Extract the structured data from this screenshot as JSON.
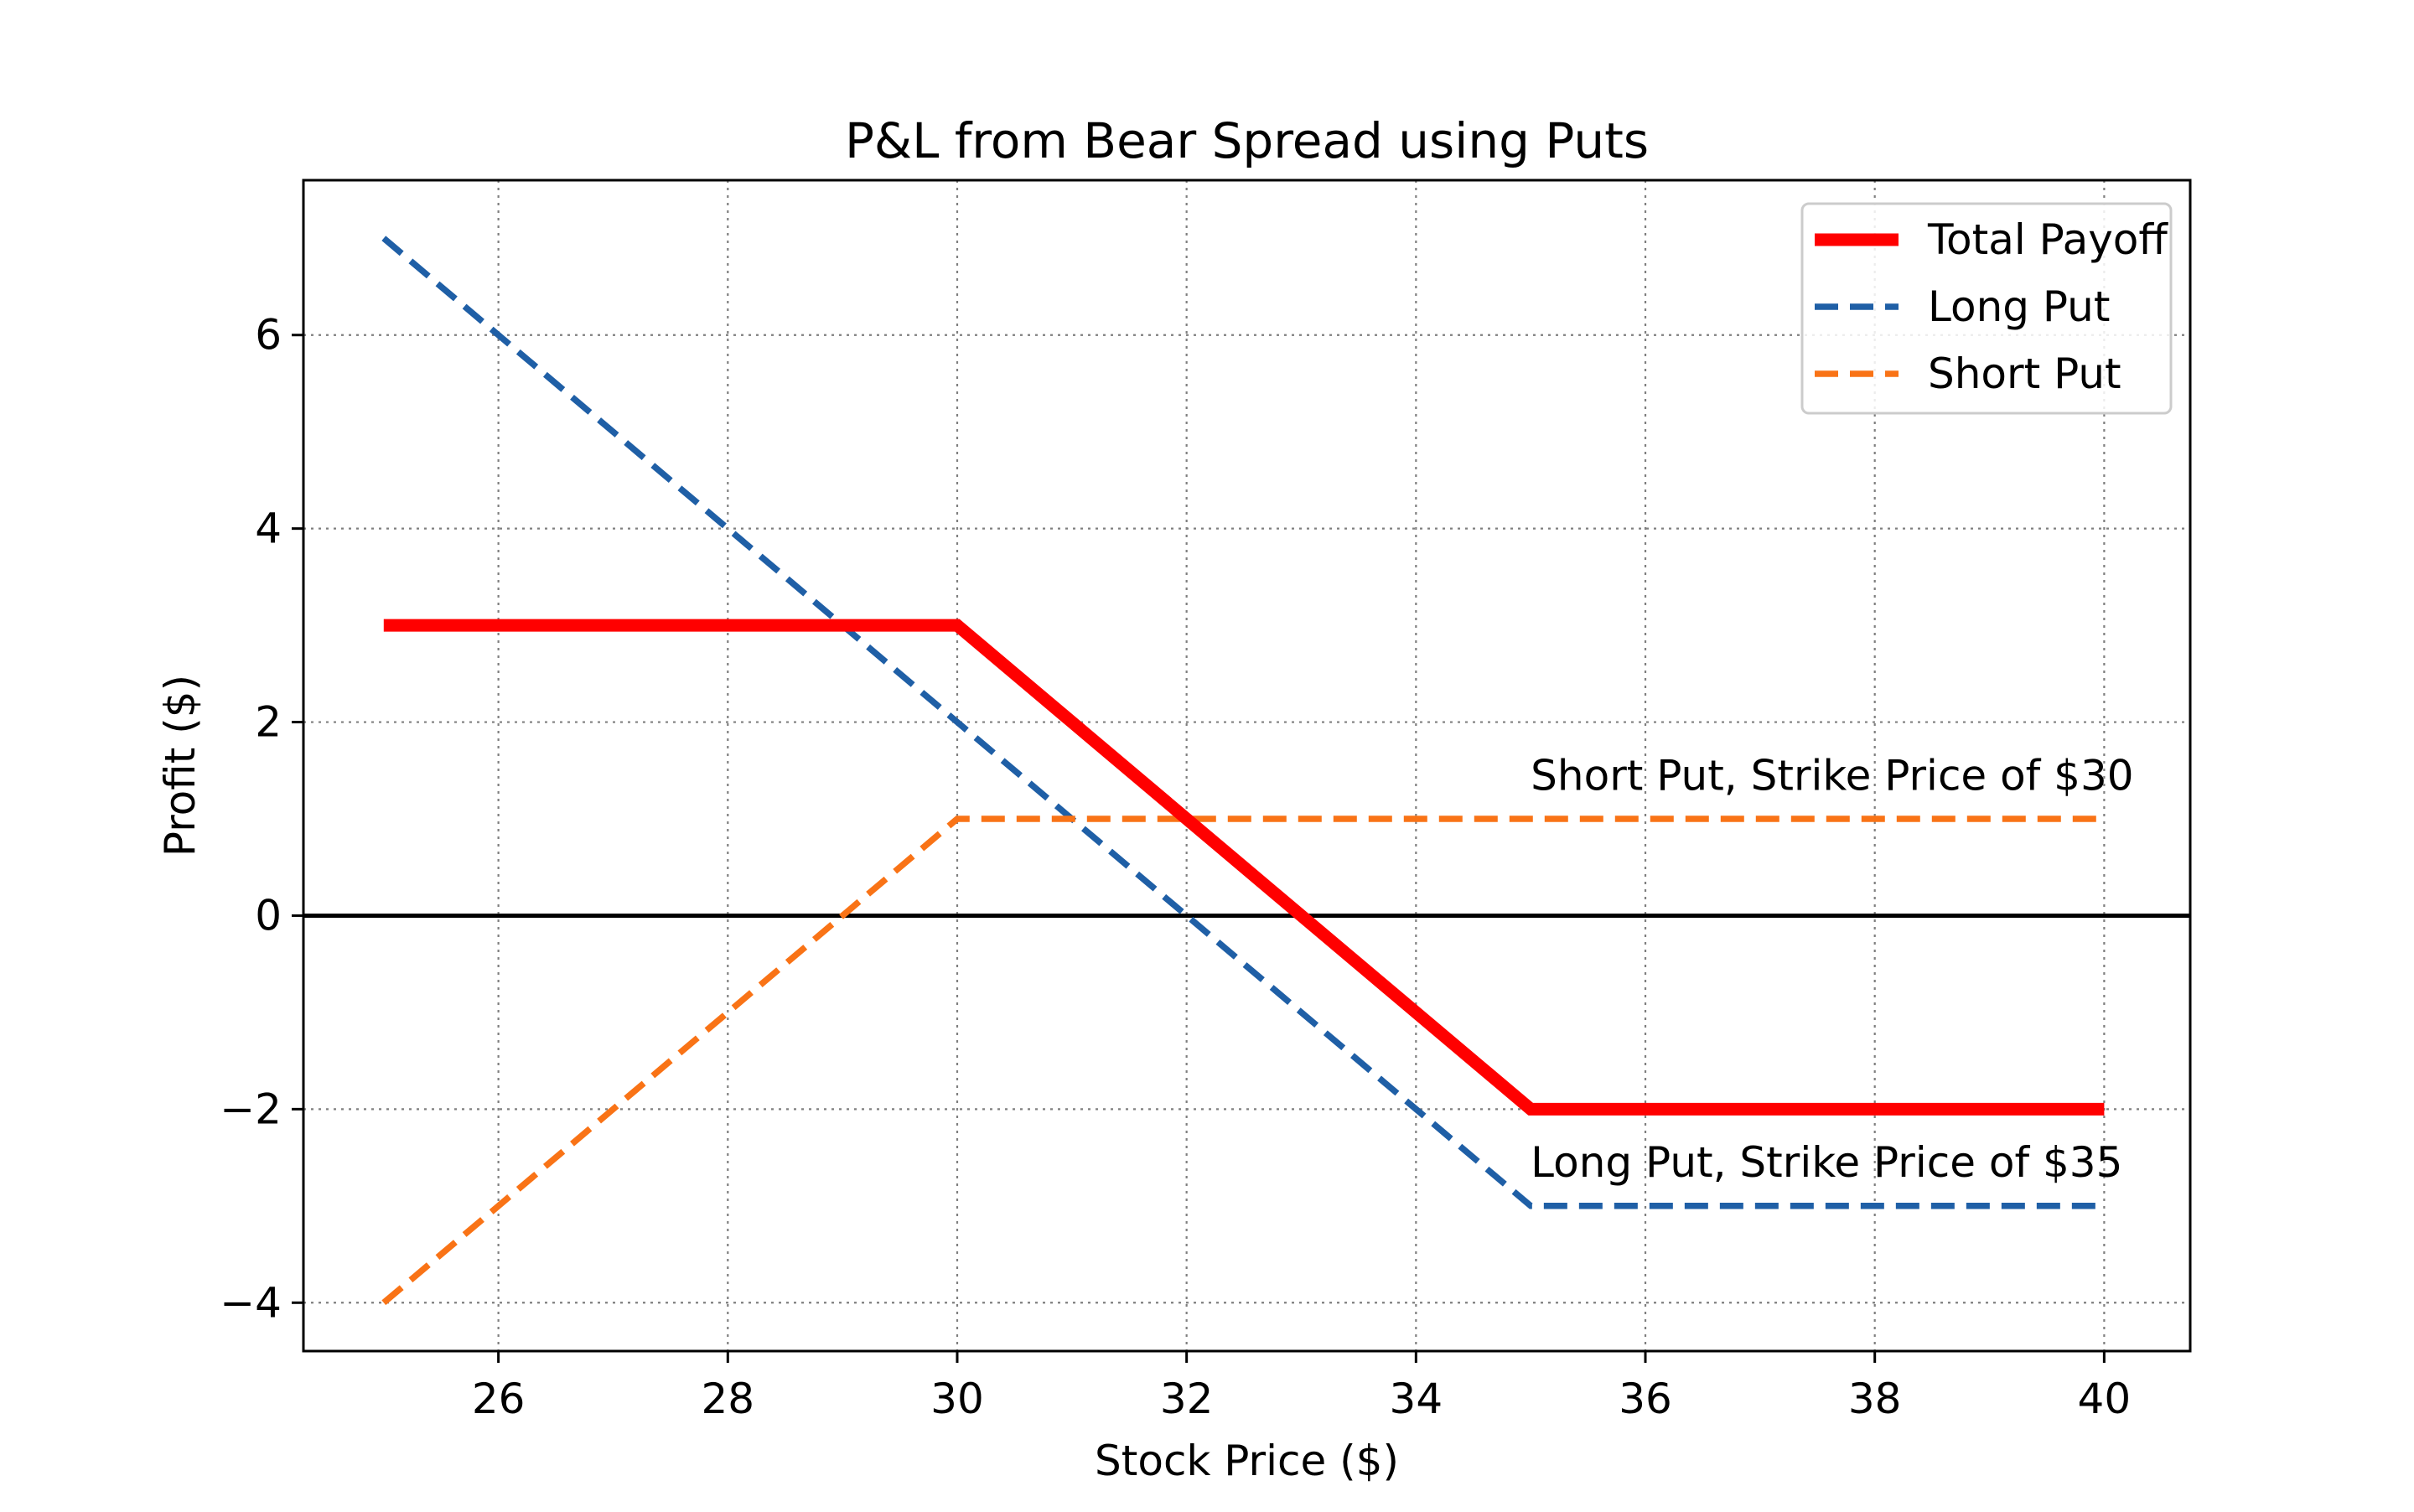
{
  "chart_data": {
    "type": "line",
    "title": "P&L from Bear Spread using Puts",
    "xlabel": "Stock Price ($)",
    "ylabel": "Profit ($)",
    "xlim": [
      24.3,
      40.75
    ],
    "ylim": [
      -4.5,
      7.6
    ],
    "xticks": [
      26,
      28,
      30,
      32,
      34,
      36,
      38,
      40
    ],
    "xtick_labels": [
      "26",
      "28",
      "30",
      "32",
      "34",
      "36",
      "38",
      "40"
    ],
    "yticks": [
      -4,
      -2,
      0,
      2,
      4,
      6
    ],
    "ytick_labels": [
      "−4",
      "−2",
      "0",
      "2",
      "4",
      "6"
    ],
    "grid": true,
    "zero_line": true,
    "legend_position": "top-right",
    "series": [
      {
        "name": "Total Payoff",
        "color": "#ff0000",
        "style": "solid",
        "x": [
          25,
          30,
          35,
          40
        ],
        "y": [
          3,
          3,
          -2,
          -2
        ]
      },
      {
        "name": "Long Put",
        "color": "#1f5fa6",
        "style": "dashed",
        "x": [
          25,
          35,
          40
        ],
        "y": [
          7,
          -3,
          -3
        ]
      },
      {
        "name": "Short Put",
        "color": "#f97316",
        "style": "dashed",
        "x": [
          25,
          30,
          40
        ],
        "y": [
          -4,
          1,
          1
        ]
      }
    ],
    "annotations": [
      {
        "text": "Short Put, Strike Price of $30",
        "x": 35,
        "y": 1.3
      },
      {
        "text": "Long Put, Strike Price of $35",
        "x": 35,
        "y": -2.7
      }
    ]
  }
}
